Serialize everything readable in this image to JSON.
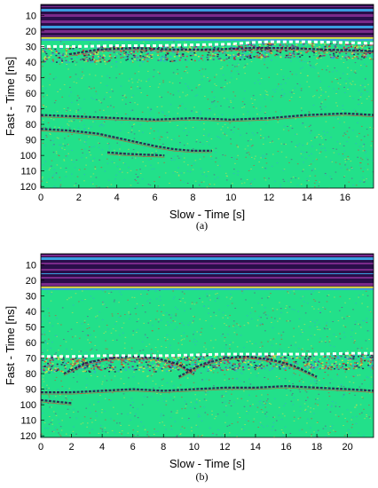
{
  "chart_data": [
    {
      "type": "heatmap",
      "panel_label": "(a)",
      "xlabel": "Slow - Time [s]",
      "ylabel": "Fast - Time [ns]",
      "xlim": [
        0,
        17.5
      ],
      "ylim": [
        3,
        121
      ],
      "y_reversed": true,
      "xticks": [
        0,
        2,
        4,
        6,
        8,
        10,
        12,
        14,
        16
      ],
      "yticks": [
        10,
        20,
        30,
        40,
        50,
        60,
        70,
        80,
        90,
        100,
        110,
        120
      ],
      "colormap": [
        "#2a0e4a",
        "#7a2a8a",
        "#3a9ee0",
        "#2fe88a",
        "#e8e040",
        "#e23a2a"
      ],
      "background_color": "#22e08a",
      "band_top_ns": [
        3,
        24
      ],
      "surface_line": {
        "style": "white-dashed",
        "x": [
          0,
          2,
          4,
          6,
          8,
          10,
          11,
          12,
          14,
          16,
          17.5
        ],
        "y": [
          30,
          30,
          29.5,
          29.5,
          29,
          28.5,
          27.5,
          27,
          27,
          27.5,
          28
        ]
      },
      "reflections": [
        {
          "x": [
            1.5,
            3,
            5,
            7,
            9,
            11,
            13,
            15,
            17.5
          ],
          "y": [
            35,
            32,
            31,
            32,
            32,
            31,
            31,
            32,
            33
          ]
        },
        {
          "x": [
            0,
            2,
            4,
            6,
            8,
            10,
            12,
            14,
            16,
            17.5
          ],
          "y": [
            74,
            75,
            76,
            77,
            76,
            77,
            76,
            74,
            73,
            74
          ]
        },
        {
          "x": [
            0,
            1.5,
            3,
            4.5,
            6,
            7,
            8,
            9
          ],
          "y": [
            83,
            84,
            86,
            90,
            94,
            96,
            97,
            97
          ]
        },
        {
          "x": [
            3.5,
            4.5,
            5.5,
            6.5
          ],
          "y": [
            98,
            99,
            99.5,
            100
          ]
        }
      ]
    },
    {
      "type": "heatmap",
      "panel_label": "(b)",
      "xlabel": "Slow - Time [s]",
      "ylabel": "Fast - Time [ns]",
      "xlim": [
        0,
        21.7
      ],
      "ylim": [
        3,
        121
      ],
      "y_reversed": true,
      "xticks": [
        0,
        2,
        4,
        6,
        8,
        10,
        12,
        14,
        16,
        18,
        20
      ],
      "yticks": [
        10,
        20,
        30,
        40,
        50,
        60,
        70,
        80,
        90,
        100,
        110,
        120
      ],
      "colormap": [
        "#2a0e4a",
        "#7a2a8a",
        "#3a9ee0",
        "#2fe88a",
        "#e8e040",
        "#e23a2a"
      ],
      "background_color": "#22e08a",
      "band_top_ns": [
        3,
        24
      ],
      "surface_line": {
        "style": "white-dashed",
        "x": [
          0,
          2,
          4,
          6,
          8,
          10,
          12,
          14,
          16,
          18,
          20,
          21.7
        ],
        "y": [
          69,
          69,
          68.5,
          68.5,
          68.5,
          68,
          67.5,
          67.5,
          67.5,
          67.5,
          67,
          67
        ]
      },
      "reflections": [
        {
          "x": [
            1.5,
            3,
            4.5,
            6,
            7.5,
            9,
            10
          ],
          "y": [
            80,
            73,
            70,
            69,
            70,
            74,
            80
          ]
        },
        {
          "x": [
            9,
            10.5,
            12,
            13.5,
            15,
            16.5,
            18
          ],
          "y": [
            82,
            74,
            70,
            69,
            71,
            75,
            82
          ]
        },
        {
          "x": [
            0,
            2,
            4,
            6,
            8,
            10,
            12,
            14,
            16,
            18,
            20,
            21.7
          ],
          "y": [
            92,
            92,
            91,
            90,
            91,
            90,
            89,
            89,
            88,
            89,
            90,
            91
          ]
        },
        {
          "x": [
            0,
            1,
            2
          ],
          "y": [
            97,
            98,
            99
          ]
        }
      ]
    }
  ]
}
